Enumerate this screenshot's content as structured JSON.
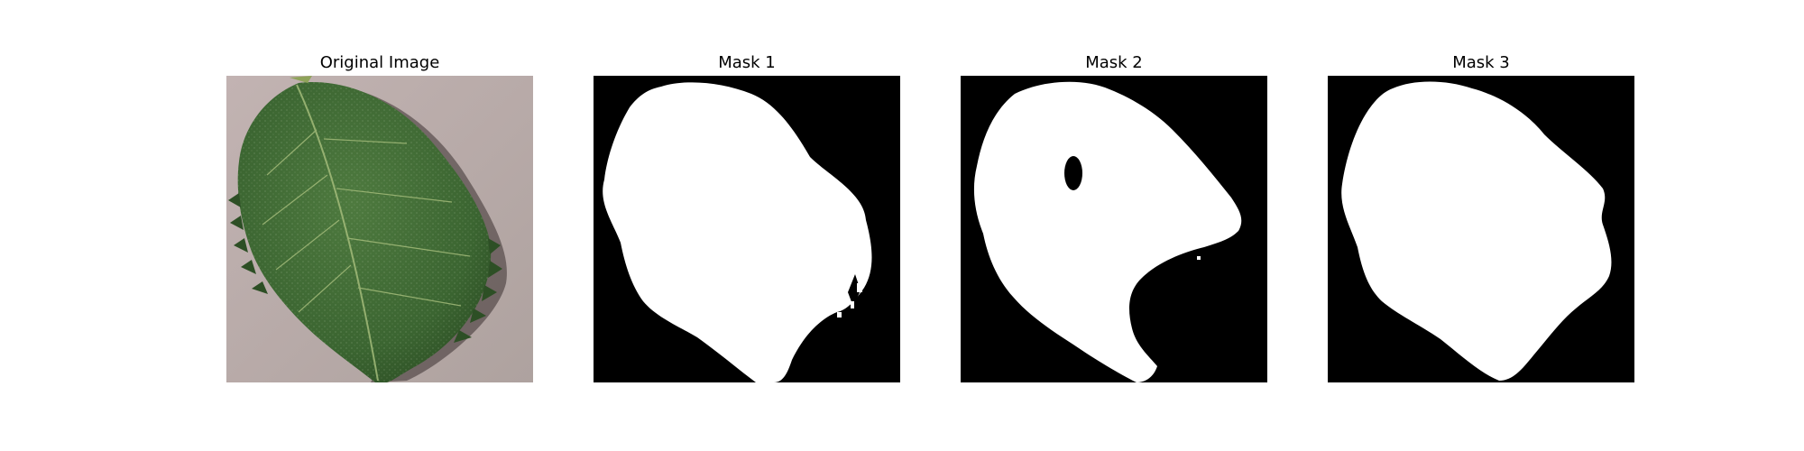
{
  "figure": {
    "panels": [
      {
        "title": "Original Image",
        "kind": "photo",
        "subject": "leaf-icon"
      },
      {
        "title": "Mask 1",
        "kind": "mask"
      },
      {
        "title": "Mask 2",
        "kind": "mask"
      },
      {
        "title": "Mask 3",
        "kind": "mask"
      }
    ]
  },
  "colors": {
    "background": "#ffffff",
    "mask_bg": "#000000",
    "mask_fg": "#ffffff",
    "leaf": "#3f6a33",
    "leaf_dark": "#2f5226",
    "ground": "#b8aaa8"
  }
}
